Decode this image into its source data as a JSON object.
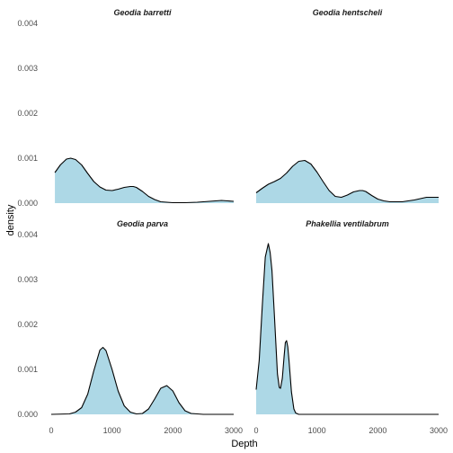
{
  "chart_data": {
    "type": "area",
    "xlabel": "Depth",
    "ylabel": "density",
    "xlim": [
      0,
      3000
    ],
    "ylim": [
      0,
      0.004
    ],
    "x_ticks": [
      0,
      1000,
      2000,
      3000
    ],
    "x_tick_labels": [
      "0",
      "1000",
      "2000",
      "3000"
    ],
    "y_ticks": [
      0,
      0.001,
      0.002,
      0.003,
      0.004
    ],
    "y_tick_labels": [
      "0.000",
      "0.001",
      "0.002",
      "0.003",
      "0.004"
    ],
    "grid": false,
    "fill_color": "#add8e6",
    "line_color": "#000000",
    "panels": [
      {
        "label": "Geodia barretti",
        "x": [
          60,
          150,
          250,
          320,
          400,
          500,
          600,
          700,
          800,
          900,
          1000,
          1100,
          1200,
          1300,
          1350,
          1400,
          1500,
          1600,
          1700,
          1800,
          2000,
          2200,
          2400,
          2600,
          2800,
          2900,
          3000
        ],
        "y": [
          0.00068,
          0.00085,
          0.00098,
          0.001,
          0.00097,
          0.00085,
          0.00066,
          0.00048,
          0.00036,
          0.00029,
          0.00028,
          0.00031,
          0.00035,
          0.00037,
          0.00037,
          0.00035,
          0.00026,
          0.00015,
          8e-05,
          3e-05,
          1e-05,
          1e-05,
          2e-05,
          4e-05,
          6e-05,
          5e-05,
          4e-05
        ]
      },
      {
        "label": "Geodia hentscheli",
        "x": [
          0,
          100,
          200,
          300,
          400,
          500,
          600,
          700,
          800,
          900,
          1000,
          1100,
          1200,
          1300,
          1400,
          1500,
          1600,
          1700,
          1750,
          1800,
          1900,
          2000,
          2100,
          2200,
          2400,
          2600,
          2800,
          3000
        ],
        "y": [
          0.00023,
          0.00033,
          0.00042,
          0.00048,
          0.00055,
          0.00067,
          0.00082,
          0.00093,
          0.00095,
          0.00087,
          0.00069,
          0.00048,
          0.00028,
          0.00015,
          0.00013,
          0.00018,
          0.00025,
          0.00028,
          0.00028,
          0.00026,
          0.00017,
          9e-05,
          5e-05,
          3e-05,
          3e-05,
          7e-05,
          0.00013,
          0.00013
        ]
      },
      {
        "label": "Geodia parva",
        "x": [
          0,
          300,
          400,
          500,
          600,
          700,
          800,
          850,
          900,
          1000,
          1100,
          1200,
          1300,
          1400,
          1500,
          1600,
          1700,
          1800,
          1900,
          2000,
          2100,
          2200,
          2300,
          2500,
          3000
        ],
        "y": [
          0,
          1e-05,
          5e-05,
          0.00015,
          0.00045,
          0.00097,
          0.00143,
          0.00149,
          0.00142,
          0.001,
          0.00052,
          0.00019,
          5e-05,
          1e-05,
          2e-05,
          0.00012,
          0.00034,
          0.00058,
          0.00064,
          0.00052,
          0.00026,
          8e-05,
          2e-05,
          0,
          0
        ]
      },
      {
        "label": "Phakellia ventilabrum",
        "x": [
          0,
          50,
          100,
          150,
          200,
          230,
          260,
          300,
          350,
          380,
          400,
          430,
          460,
          480,
          500,
          520,
          540,
          580,
          620,
          650,
          700,
          800,
          1000,
          1500,
          3000
        ],
        "y": [
          0.00055,
          0.0012,
          0.0024,
          0.0035,
          0.0038,
          0.0036,
          0.0032,
          0.0022,
          0.0009,
          0.0006,
          0.00058,
          0.0008,
          0.0013,
          0.0016,
          0.00164,
          0.0015,
          0.0012,
          0.0005,
          0.00012,
          3e-05,
          0,
          0,
          0,
          0,
          0
        ]
      }
    ]
  }
}
